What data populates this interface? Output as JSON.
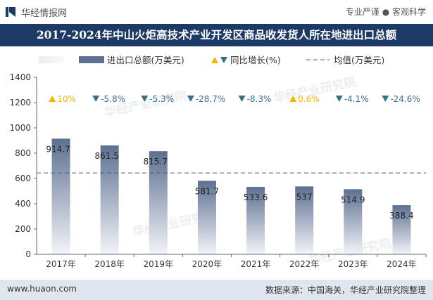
{
  "header": {
    "brand": "华经情报网",
    "tagline": "专业严谨 ● 客观科学"
  },
  "title": "2017-2024年中山火炬高技术产业开发区商品收发货人所在地进出口总额",
  "legend": {
    "bar_label": "进出口总额(万美元)",
    "growth_label": "同比增长(%)",
    "avg_label": "均值(万美元)"
  },
  "footer": {
    "site": "www.huaon.com",
    "source": "数据来源：中国海关，华经产业研究院整理"
  },
  "watermark": "华经产业研究院",
  "colors": {
    "title_bg": "#1b3a66",
    "bar_top": "#5d7091",
    "bar_bottom": "#f2f4f8",
    "up": "#f2b600",
    "down": "#3a6e8e",
    "avg_line": "#4a5d7a",
    "footer_bg": "#dfe6ef"
  },
  "chart_data": {
    "type": "bar",
    "categories": [
      "2017年",
      "2018年",
      "2019年",
      "2020年",
      "2021年",
      "2022年",
      "2023年",
      "2024年"
    ],
    "series": [
      {
        "name": "进出口总额(万美元)",
        "values": [
          914.7,
          861.5,
          815.7,
          581.7,
          533.6,
          537,
          514.9,
          388.4
        ]
      }
    ],
    "growth_labels": [
      "10%",
      "-5.8%",
      "-5.3%",
      "-28.7%",
      "-8.3%",
      "0.6%",
      "-4.1%",
      "-24.6%"
    ],
    "growth_direction": [
      "up",
      "down",
      "down",
      "down",
      "down",
      "up",
      "down",
      "down"
    ],
    "average": 643.6,
    "ylim": [
      0,
      1400
    ],
    "yticks": [
      0,
      200,
      400,
      600,
      800,
      1000,
      1200,
      1400
    ],
    "grid": false,
    "legend_position": "top"
  }
}
